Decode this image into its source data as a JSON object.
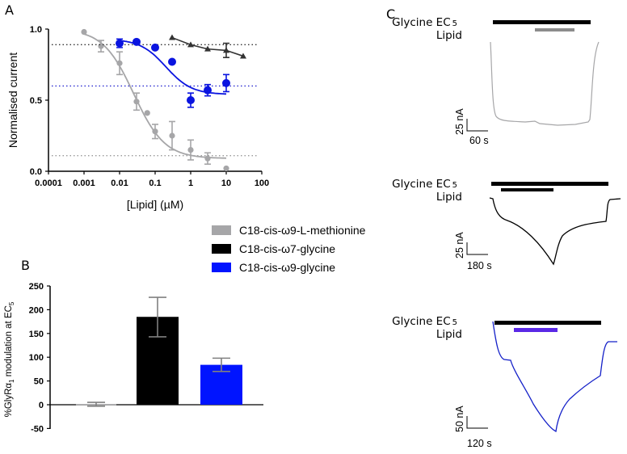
{
  "panels": {
    "a": "A",
    "b": "B",
    "c": "C"
  },
  "chart_data": [
    {
      "type": "scatter",
      "title": "",
      "xlabel": "[Lipid] (µM)",
      "ylabel": "Normalised current",
      "xscale": "log",
      "xlim": [
        0.0001,
        100
      ],
      "ylim": [
        0,
        1
      ],
      "xticks": [
        "0.0001",
        "0.001",
        "0.01",
        "0.1",
        "1",
        "10",
        "100"
      ],
      "yticks": [
        "0.0",
        "0.5",
        "1.0"
      ],
      "series": [
        {
          "name": "C18-cis-ω9-L-methionine",
          "color": "#a6a6a8",
          "marker": "circle",
          "x": [
            0.001,
            0.003,
            0.01,
            0.03,
            0.06,
            0.1,
            0.3,
            1,
            3,
            10
          ],
          "y": [
            0.98,
            0.88,
            0.76,
            0.49,
            0.41,
            0.28,
            0.25,
            0.15,
            0.09,
            0.02
          ],
          "err": [
            0,
            0.04,
            0.08,
            0.06,
            0,
            0.05,
            0.1,
            0.07,
            0.04,
            0
          ],
          "fit": {
            "top": 1.0,
            "bottom": 0.09,
            "ic50": 0.025,
            "hill": 1.0
          },
          "reference_line": 0.11
        },
        {
          "name": "C18-cis-ω7-glycine",
          "color": "#333333",
          "marker": "triangle",
          "x": [
            0.3,
            1,
            3,
            10,
            30
          ],
          "y": [
            0.94,
            0.89,
            0.86,
            0.85,
            0.81
          ],
          "err": [
            0,
            0,
            0,
            0.05,
            0
          ],
          "reference_line": 0.89
        },
        {
          "name": "C18-cis-ω9-glycine",
          "color": "#0a14e0",
          "marker": "circle",
          "x": [
            0.01,
            0.03,
            0.1,
            0.3,
            1,
            3,
            10
          ],
          "y": [
            0.9,
            0.91,
            0.87,
            0.77,
            0.5,
            0.57,
            0.62
          ],
          "err": [
            0.03,
            0,
            0,
            0,
            0.05,
            0.04,
            0.06
          ],
          "fit": {
            "top": 0.93,
            "bottom": 0.54,
            "ic50": 0.2,
            "hill": 1.2
          },
          "reference_line": 0.6
        }
      ],
      "legend": "right"
    },
    {
      "type": "bar",
      "ylabel_main": "%GlyRα",
      "ylabel_sub1": "1",
      "ylabel_rest": " modulation at EC",
      "ylabel_sub2": "5",
      "ylim": [
        -50,
        250
      ],
      "yticks": [
        "-50",
        "0",
        "50",
        "100",
        "150",
        "200",
        "250"
      ],
      "categories": [
        "C18-cis-ω9-L-methionine",
        "C18-cis-ω7-glycine",
        "C18-cis-ω9-glycine"
      ],
      "values": [
        1,
        185,
        84
      ],
      "err_low": [
        -3,
        143,
        70
      ],
      "err_high": [
        5,
        226,
        98
      ],
      "colors": [
        "#a6a6a8",
        "#000000",
        "#0014ff"
      ]
    }
  ],
  "legend": [
    {
      "label": "C18-cis-ω9-L-methionine",
      "color": "#a6a6a8"
    },
    {
      "label": "C18-cis-ω7-glycine",
      "color": "#000000"
    },
    {
      "label": "C18-cis-ω9-glycine",
      "color": "#0014ff"
    }
  ],
  "traces": [
    {
      "glycine": "Glycine EC",
      "sub": "5",
      "lipid": "Lipid",
      "y_scale": "25 nA",
      "x_scale": "60 s",
      "color": "#a6a6a8",
      "lipid_bar_color": "#8c8c8c"
    },
    {
      "glycine": "Glycine EC",
      "sub": "5",
      "lipid": "Lipid",
      "y_scale": "25 nA",
      "x_scale": "180 s",
      "color": "#000000",
      "lipid_bar_color": "#000000"
    },
    {
      "glycine": "Glycine EC",
      "sub": "5",
      "lipid": "Lipid",
      "y_scale": "50 nA",
      "x_scale": "120 s",
      "color": "#1420c8",
      "lipid_bar_color": "#5a28e6"
    }
  ]
}
